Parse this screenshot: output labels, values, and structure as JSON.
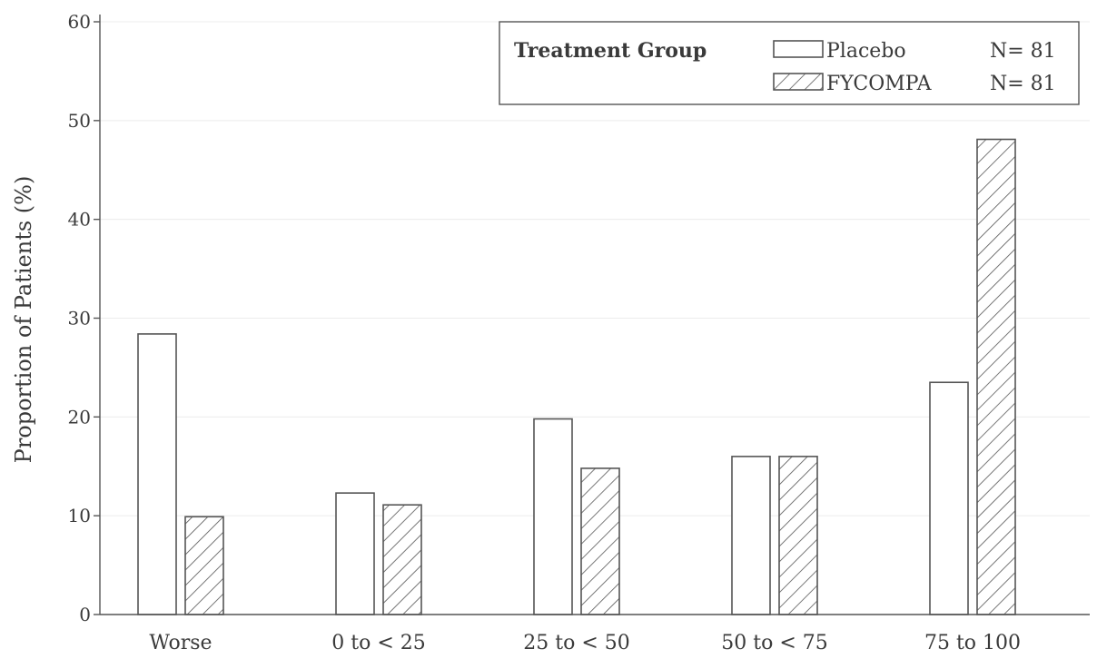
{
  "chart_data": {
    "type": "bar",
    "title": "",
    "xlabel": "",
    "ylabel": "Proportion of Patients (%)",
    "ylim": [
      0,
      60
    ],
    "yticks": [
      "0",
      "10",
      "20",
      "30",
      "40",
      "50",
      "60"
    ],
    "grid": true,
    "categories": [
      "Worse",
      "0 to < 25",
      "25 to < 50",
      "50 to < 75",
      "75 to 100"
    ],
    "series": [
      {
        "name": "Placebo",
        "n_label": "N= 81",
        "pattern": "empty",
        "values": [
          28.4,
          12.3,
          19.8,
          16.0,
          23.5
        ]
      },
      {
        "name": "FYCOMPA",
        "n_label": "N= 81",
        "pattern": "hatched",
        "values": [
          9.9,
          11.1,
          14.8,
          16.0,
          48.1
        ]
      }
    ],
    "legend": {
      "title": "Treatment Group",
      "position": "top-right"
    }
  }
}
